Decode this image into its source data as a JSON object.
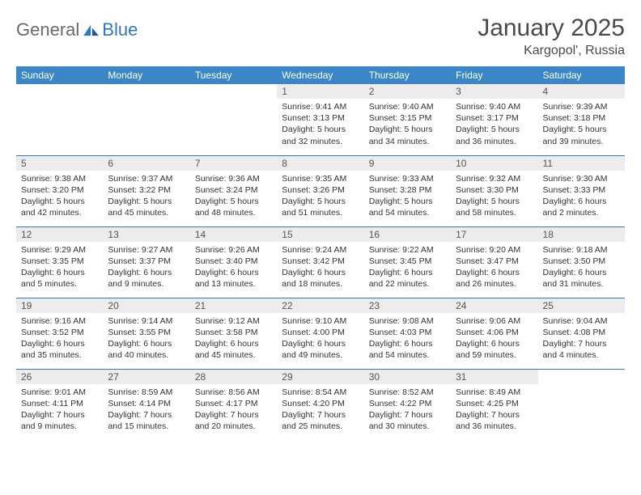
{
  "brand": {
    "part1": "General",
    "part2": "Blue"
  },
  "title": "January 2025",
  "location": "Kargopol', Russia",
  "colors": {
    "header_bg": "#3b86c6",
    "header_text": "#ffffff",
    "daynum_bg": "#ececec",
    "border": "#2f78bd",
    "brand_gray": "#6a6a6a",
    "brand_blue": "#2f78bd"
  },
  "day_names": [
    "Sunday",
    "Monday",
    "Tuesday",
    "Wednesday",
    "Thursday",
    "Friday",
    "Saturday"
  ],
  "weeks": [
    [
      {
        "n": "",
        "sr": "",
        "ss": "",
        "dl": ""
      },
      {
        "n": "",
        "sr": "",
        "ss": "",
        "dl": ""
      },
      {
        "n": "",
        "sr": "",
        "ss": "",
        "dl": ""
      },
      {
        "n": "1",
        "sr": "Sunrise: 9:41 AM",
        "ss": "Sunset: 3:13 PM",
        "dl": "Daylight: 5 hours and 32 minutes."
      },
      {
        "n": "2",
        "sr": "Sunrise: 9:40 AM",
        "ss": "Sunset: 3:15 PM",
        "dl": "Daylight: 5 hours and 34 minutes."
      },
      {
        "n": "3",
        "sr": "Sunrise: 9:40 AM",
        "ss": "Sunset: 3:17 PM",
        "dl": "Daylight: 5 hours and 36 minutes."
      },
      {
        "n": "4",
        "sr": "Sunrise: 9:39 AM",
        "ss": "Sunset: 3:18 PM",
        "dl": "Daylight: 5 hours and 39 minutes."
      }
    ],
    [
      {
        "n": "5",
        "sr": "Sunrise: 9:38 AM",
        "ss": "Sunset: 3:20 PM",
        "dl": "Daylight: 5 hours and 42 minutes."
      },
      {
        "n": "6",
        "sr": "Sunrise: 9:37 AM",
        "ss": "Sunset: 3:22 PM",
        "dl": "Daylight: 5 hours and 45 minutes."
      },
      {
        "n": "7",
        "sr": "Sunrise: 9:36 AM",
        "ss": "Sunset: 3:24 PM",
        "dl": "Daylight: 5 hours and 48 minutes."
      },
      {
        "n": "8",
        "sr": "Sunrise: 9:35 AM",
        "ss": "Sunset: 3:26 PM",
        "dl": "Daylight: 5 hours and 51 minutes."
      },
      {
        "n": "9",
        "sr": "Sunrise: 9:33 AM",
        "ss": "Sunset: 3:28 PM",
        "dl": "Daylight: 5 hours and 54 minutes."
      },
      {
        "n": "10",
        "sr": "Sunrise: 9:32 AM",
        "ss": "Sunset: 3:30 PM",
        "dl": "Daylight: 5 hours and 58 minutes."
      },
      {
        "n": "11",
        "sr": "Sunrise: 9:30 AM",
        "ss": "Sunset: 3:33 PM",
        "dl": "Daylight: 6 hours and 2 minutes."
      }
    ],
    [
      {
        "n": "12",
        "sr": "Sunrise: 9:29 AM",
        "ss": "Sunset: 3:35 PM",
        "dl": "Daylight: 6 hours and 5 minutes."
      },
      {
        "n": "13",
        "sr": "Sunrise: 9:27 AM",
        "ss": "Sunset: 3:37 PM",
        "dl": "Daylight: 6 hours and 9 minutes."
      },
      {
        "n": "14",
        "sr": "Sunrise: 9:26 AM",
        "ss": "Sunset: 3:40 PM",
        "dl": "Daylight: 6 hours and 13 minutes."
      },
      {
        "n": "15",
        "sr": "Sunrise: 9:24 AM",
        "ss": "Sunset: 3:42 PM",
        "dl": "Daylight: 6 hours and 18 minutes."
      },
      {
        "n": "16",
        "sr": "Sunrise: 9:22 AM",
        "ss": "Sunset: 3:45 PM",
        "dl": "Daylight: 6 hours and 22 minutes."
      },
      {
        "n": "17",
        "sr": "Sunrise: 9:20 AM",
        "ss": "Sunset: 3:47 PM",
        "dl": "Daylight: 6 hours and 26 minutes."
      },
      {
        "n": "18",
        "sr": "Sunrise: 9:18 AM",
        "ss": "Sunset: 3:50 PM",
        "dl": "Daylight: 6 hours and 31 minutes."
      }
    ],
    [
      {
        "n": "19",
        "sr": "Sunrise: 9:16 AM",
        "ss": "Sunset: 3:52 PM",
        "dl": "Daylight: 6 hours and 35 minutes."
      },
      {
        "n": "20",
        "sr": "Sunrise: 9:14 AM",
        "ss": "Sunset: 3:55 PM",
        "dl": "Daylight: 6 hours and 40 minutes."
      },
      {
        "n": "21",
        "sr": "Sunrise: 9:12 AM",
        "ss": "Sunset: 3:58 PM",
        "dl": "Daylight: 6 hours and 45 minutes."
      },
      {
        "n": "22",
        "sr": "Sunrise: 9:10 AM",
        "ss": "Sunset: 4:00 PM",
        "dl": "Daylight: 6 hours and 49 minutes."
      },
      {
        "n": "23",
        "sr": "Sunrise: 9:08 AM",
        "ss": "Sunset: 4:03 PM",
        "dl": "Daylight: 6 hours and 54 minutes."
      },
      {
        "n": "24",
        "sr": "Sunrise: 9:06 AM",
        "ss": "Sunset: 4:06 PM",
        "dl": "Daylight: 6 hours and 59 minutes."
      },
      {
        "n": "25",
        "sr": "Sunrise: 9:04 AM",
        "ss": "Sunset: 4:08 PM",
        "dl": "Daylight: 7 hours and 4 minutes."
      }
    ],
    [
      {
        "n": "26",
        "sr": "Sunrise: 9:01 AM",
        "ss": "Sunset: 4:11 PM",
        "dl": "Daylight: 7 hours and 9 minutes."
      },
      {
        "n": "27",
        "sr": "Sunrise: 8:59 AM",
        "ss": "Sunset: 4:14 PM",
        "dl": "Daylight: 7 hours and 15 minutes."
      },
      {
        "n": "28",
        "sr": "Sunrise: 8:56 AM",
        "ss": "Sunset: 4:17 PM",
        "dl": "Daylight: 7 hours and 20 minutes."
      },
      {
        "n": "29",
        "sr": "Sunrise: 8:54 AM",
        "ss": "Sunset: 4:20 PM",
        "dl": "Daylight: 7 hours and 25 minutes."
      },
      {
        "n": "30",
        "sr": "Sunrise: 8:52 AM",
        "ss": "Sunset: 4:22 PM",
        "dl": "Daylight: 7 hours and 30 minutes."
      },
      {
        "n": "31",
        "sr": "Sunrise: 8:49 AM",
        "ss": "Sunset: 4:25 PM",
        "dl": "Daylight: 7 hours and 36 minutes."
      },
      {
        "n": "",
        "sr": "",
        "ss": "",
        "dl": ""
      }
    ]
  ]
}
